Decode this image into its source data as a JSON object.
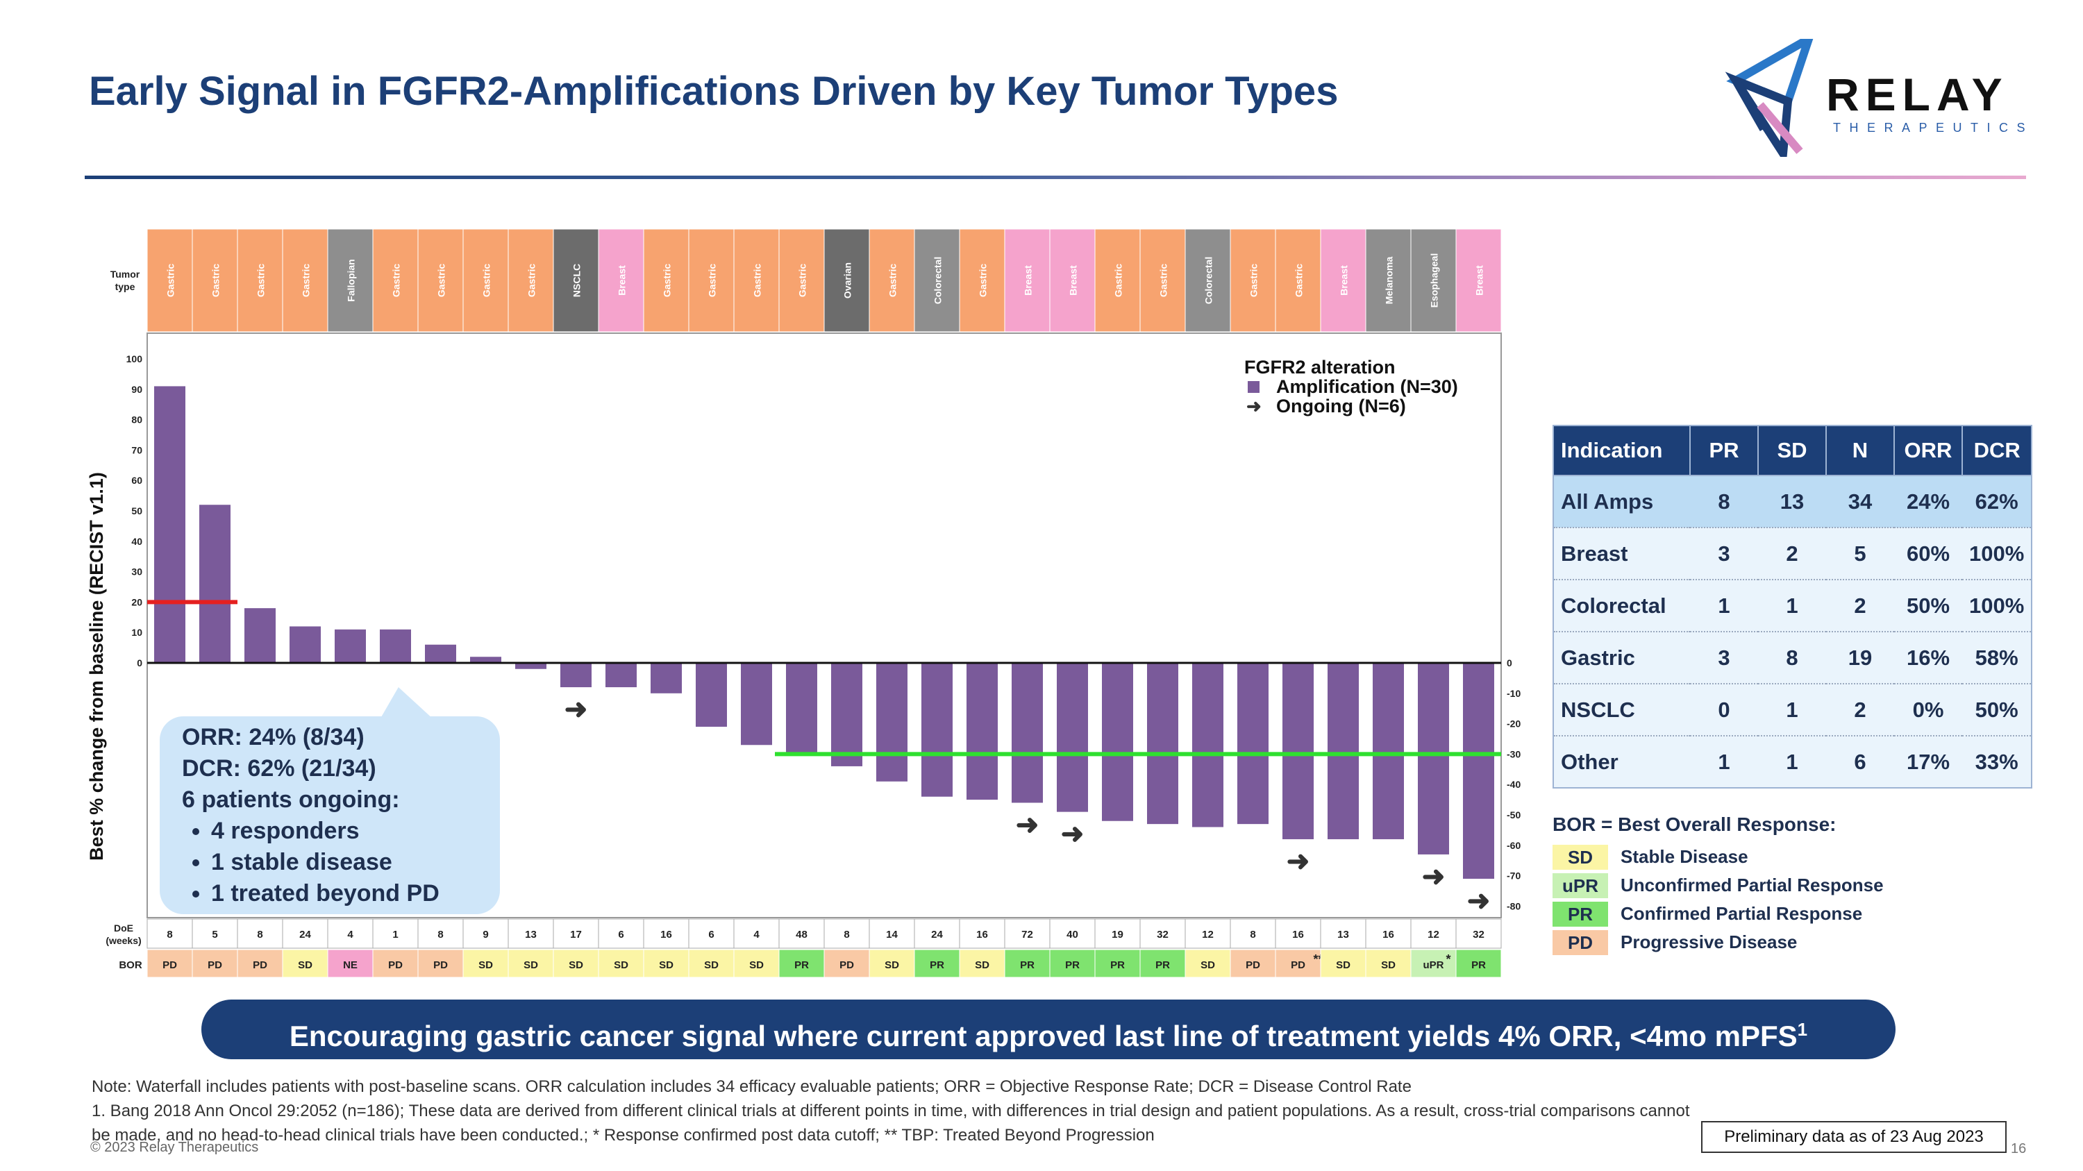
{
  "header": {
    "title": "Early Signal in FGFR2-Amplifications Driven by Key Tumor Types",
    "logo_word": "RELAY",
    "logo_sub": "THERAPEUTICS"
  },
  "chart_data": {
    "type": "bar",
    "title": "",
    "ylabel": "Best % change from baseline (RECIST v1.1)",
    "ylim": [
      -80,
      100
    ],
    "yticks_left": [
      0,
      10,
      20,
      30,
      40,
      50,
      60,
      70,
      80,
      90,
      100
    ],
    "yticks_right": [
      0,
      -10,
      -20,
      -30,
      -40,
      -50,
      -60,
      -70,
      -80
    ],
    "tumor_row_label": "Tumor type",
    "doe_row_label": "DoE (weeks)",
    "bor_row_label": "BOR",
    "tumor_types": [
      "Gastric",
      "Gastric",
      "Gastric",
      "Gastric",
      "Fallopian",
      "Gastric",
      "Gastric",
      "Gastric",
      "Gastric",
      "NSCLC",
      "Breast",
      "Gastric",
      "Gastric",
      "Gastric",
      "Gastric",
      "Ovarian",
      "Gastric",
      "Colorectal",
      "Gastric",
      "Breast",
      "Breast",
      "Gastric",
      "Gastric",
      "Colorectal",
      "Gastric",
      "Gastric",
      "Breast",
      "Melanoma",
      "Esophageal",
      "Breast"
    ],
    "values": [
      91,
      52,
      18,
      12,
      11,
      11,
      6,
      2,
      -2,
      -8,
      -8,
      -10,
      -21,
      -27,
      -30,
      -34,
      -39,
      -44,
      -45,
      -46,
      -49,
      -52,
      -53,
      -54,
      -53,
      -58,
      -58,
      -58,
      -63,
      -71
    ],
    "doe_weeks": [
      "8",
      "5",
      "8",
      "24",
      "4",
      "1",
      "8",
      "9",
      "13",
      "17",
      "6",
      "16",
      "6",
      "4",
      "48",
      "8",
      "14",
      "24",
      "16",
      "72",
      "40",
      "19",
      "32",
      "12",
      "8",
      "16",
      "13",
      "16",
      "12",
      "32"
    ],
    "bor": [
      "PD",
      "PD",
      "PD",
      "SD",
      "NE",
      "PD",
      "PD",
      "SD",
      "SD",
      "SD",
      "SD",
      "SD",
      "SD",
      "SD",
      "PR",
      "PD",
      "SD",
      "PR",
      "SD",
      "PR",
      "PR",
      "PR",
      "PR",
      "SD",
      "PD",
      "PD",
      "SD",
      "SD",
      "uPR",
      "PR"
    ],
    "bor_marks": [
      "",
      "",
      "",
      "",
      "",
      "",
      "",
      "",
      "",
      "",
      "",
      "",
      "",
      "",
      "",
      "",
      "",
      "",
      "",
      "",
      "",
      "",
      "",
      "",
      "",
      "**",
      "",
      "",
      "*",
      ""
    ],
    "ongoing": [
      9,
      19,
      20,
      25,
      28,
      29
    ],
    "thresholds": [
      {
        "name": "PD threshold",
        "value": 20
      },
      {
        "name": "PR threshold",
        "value": -30
      }
    ],
    "legend": {
      "title": "FGFR2 alteration",
      "items": [
        "Amplification (N=30)",
        "Ongoing (N=6)"
      ]
    }
  },
  "colors": {
    "bar": "#7a5a9a",
    "gastric": "#f7a36f",
    "breast": "#f5a3cc",
    "other_tumor": "#8e8e8e",
    "nsclc": "#6c6c6c",
    "bor_pd": "#f9c9a5",
    "bor_sd": "#fbf5a5",
    "bor_pr": "#7fe36f",
    "bor_upr": "#c7f1b4",
    "bor_ne": "#f5a3cc",
    "pd_line": "#e52020",
    "pr_line": "#2fe02f"
  },
  "callout": {
    "orr": "ORR: 24% (8/34)",
    "dcr": "DCR: 62% (21/34)",
    "ongoing": "6 patients ongoing:",
    "bullets": [
      "4 responders",
      "1 stable disease",
      "1 treated beyond PD"
    ]
  },
  "summary_table": {
    "headers": [
      "Indication",
      "PR",
      "SD",
      "N",
      "ORR",
      "DCR"
    ],
    "rows": [
      {
        "indication": "All Amps",
        "pr": "8",
        "sd": "13",
        "n": "34",
        "orr": "24%",
        "dcr": "62%"
      },
      {
        "indication": "Breast",
        "pr": "3",
        "sd": "2",
        "n": "5",
        "orr": "60%",
        "dcr": "100%"
      },
      {
        "indication": "Colorectal",
        "pr": "1",
        "sd": "1",
        "n": "2",
        "orr": "50%",
        "dcr": "100%"
      },
      {
        "indication": "Gastric",
        "pr": "3",
        "sd": "8",
        "n": "19",
        "orr": "16%",
        "dcr": "58%"
      },
      {
        "indication": "NSCLC",
        "pr": "0",
        "sd": "1",
        "n": "2",
        "orr": "0%",
        "dcr": "50%"
      },
      {
        "indication": "Other",
        "pr": "1",
        "sd": "1",
        "n": "6",
        "orr": "17%",
        "dcr": "33%"
      }
    ]
  },
  "bor_legend": {
    "title": "BOR = Best Overall Response:",
    "items": [
      {
        "code": "SD",
        "desc": "Stable Disease",
        "color": "#fbf5a5"
      },
      {
        "code": "uPR",
        "desc": "Unconfirmed Partial Response",
        "color": "#c7f1b4"
      },
      {
        "code": "PR",
        "desc": "Confirmed Partial Response",
        "color": "#7fe36f"
      },
      {
        "code": "PD",
        "desc": "Progressive Disease",
        "color": "#f9c9a5"
      }
    ]
  },
  "banner": {
    "text": "Encouraging gastric cancer signal where current approved last line of treatment yields 4% ORR, <4mo mPFS",
    "sup": "1"
  },
  "footer": {
    "note1": "Note: Waterfall includes patients with post-baseline scans. ORR calculation includes 34 efficacy evaluable patients; ORR = Objective Response Rate; DCR = Disease Control Rate",
    "note2": "1. Bang 2018 Ann Oncol 29:2052 (n=186); These data are derived from different clinical trials at different points in time, with differences in trial design and patient populations. As a result, cross-trial comparisons cannot be made, and no head-to-head clinical trials have been conducted.; * Response confirmed post data cutoff;  ** TBP: Treated Beyond Progression",
    "copyright": "© 2023 Relay Therapeutics",
    "prelim": "Preliminary data as of 23 Aug 2023",
    "page": "16"
  }
}
